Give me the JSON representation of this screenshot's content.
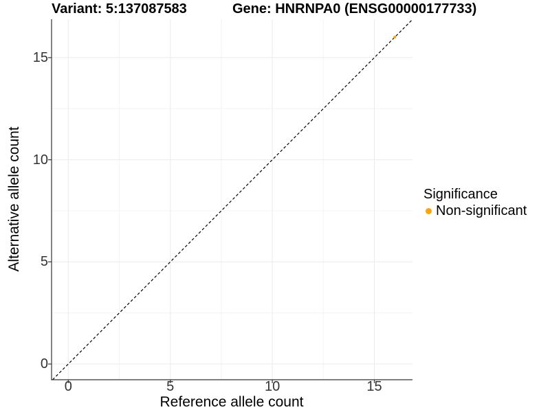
{
  "titles": {
    "variant": "Variant: 5:137087583",
    "gene": "Gene: HNRNPA0 (ENSG00000177733)"
  },
  "chart_data": {
    "type": "scatter",
    "title": "Variant: 5:137087583   Gene: HNRNPA0 (ENSG00000177733)",
    "xlabel": "Reference allele count",
    "ylabel": "Alternative allele count",
    "xlim": [
      -0.82,
      16.87
    ],
    "ylim": [
      -0.77,
      16.88
    ],
    "x_ticks": [
      0,
      5,
      10,
      15
    ],
    "y_ticks": [
      0,
      5,
      10,
      15
    ],
    "x_minor_ticks": [
      2.5,
      7.5,
      12.5
    ],
    "y_minor_ticks": [
      2.5,
      7.5,
      12.5
    ],
    "grid": true,
    "legend_position": "right",
    "series": [
      {
        "name": "Non-significant",
        "color": "#FFA500",
        "points": [
          {
            "x": 16,
            "y": 16
          }
        ]
      }
    ],
    "reference_line": {
      "type": "identity",
      "slope": 1,
      "intercept": 0,
      "style": "dashed",
      "color": "#000000"
    },
    "legend": {
      "title": "Significance",
      "items": [
        {
          "label": "Non-significant",
          "color": "#FFA500"
        }
      ]
    }
  },
  "colors": {
    "background": "#ffffff",
    "grid_major": "#ebebeb",
    "grid_minor": "#f4f4f4",
    "axis_line": "#333333",
    "tick_text": "#333333",
    "title_text": "#000000",
    "point": "#FFA500"
  }
}
